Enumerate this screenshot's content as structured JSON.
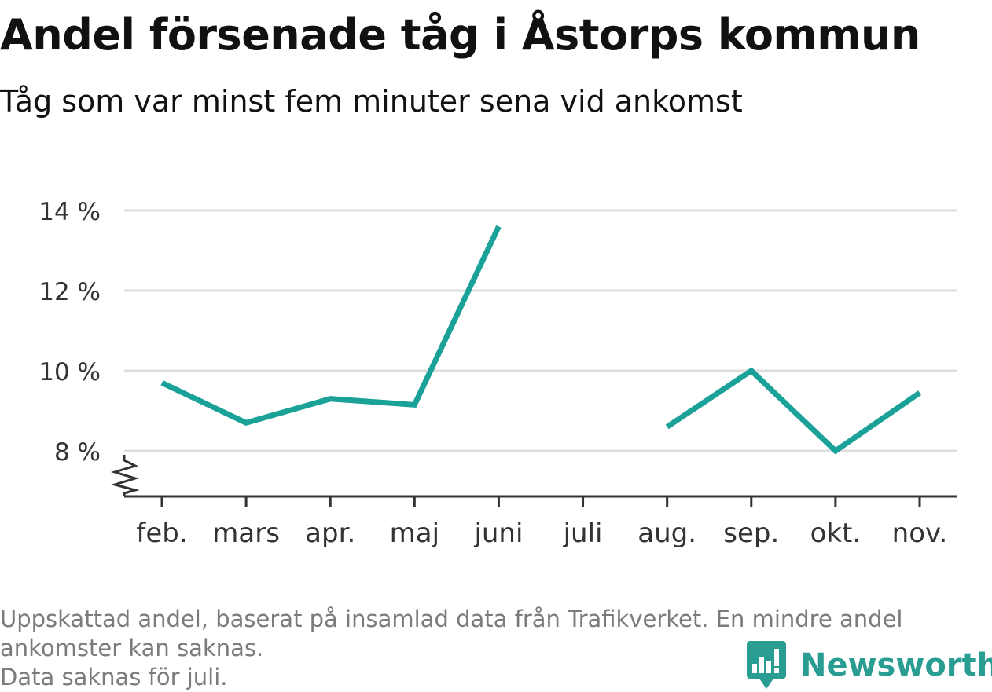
{
  "chart_data": {
    "type": "line",
    "title": "Andel försenade tåg i Åstorps kommun",
    "subtitle": "Tåg som var minst fem minuter sena vid ankomst",
    "categories": [
      "feb.",
      "mars",
      "apr.",
      "maj",
      "juni",
      "juli",
      "aug.",
      "sep.",
      "okt.",
      "nov."
    ],
    "series": [
      {
        "values": [
          9.7,
          8.7,
          9.3,
          9.15,
          13.6,
          null,
          8.6,
          10.0,
          8.0,
          9.45
        ]
      }
    ],
    "yticks": [
      8,
      10,
      12,
      14
    ],
    "ytick_labels": [
      "8 %",
      "10 %",
      "12 %",
      "14 %"
    ],
    "ylim": [
      6.9,
      14.0
    ],
    "y_axis_break": true,
    "grid": "horizontal",
    "legend": "none",
    "line_color": "#1aa198"
  },
  "footnote": {
    "line1": "Uppskattad andel, baserat på insamlad data från Trafikverket. En mindre andel",
    "line2": "ankomster kan saknas.",
    "line3": "Data saknas för juli."
  },
  "brand": {
    "name": "Newsworthy",
    "icon": "newsworthy-logo-icon",
    "color": "#2a9d93"
  }
}
